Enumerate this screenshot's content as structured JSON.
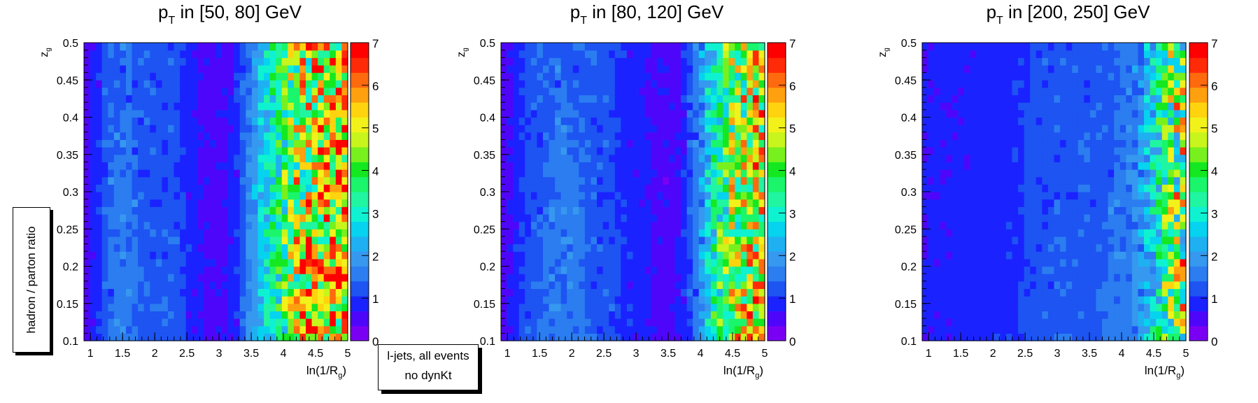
{
  "side_label": "hadron / parton ratio",
  "caption": {
    "line1": "l-jets, all events",
    "line2": "no dynKt"
  },
  "palette": [
    "#7a00f4",
    "#4e06fa",
    "#1a23ff",
    "#1d54f2",
    "#2b7df0",
    "#3698ef",
    "#1fb0f2",
    "#06d3ef",
    "#0ef2d2",
    "#20f5a1",
    "#1af56b",
    "#14e820",
    "#78f01e",
    "#c8f51c",
    "#f2f21a",
    "#ffd40e",
    "#ffa00e",
    "#ff6a0e",
    "#ff2a08",
    "#ff0000"
  ],
  "chart_data": [
    {
      "type": "heatmap",
      "title": "p_T in [50, 80] GeV",
      "title_main": "p",
      "title_sub": "T",
      "title_rest": " in [50, 80] GeV",
      "xlabel": "ln(1/R_g)",
      "xlabel_main": "ln(1/R",
      "xlabel_sub": "g",
      "xlabel_end": ")",
      "ylabel": "z_g",
      "ylabel_main": "z",
      "ylabel_sub": "g",
      "xlim": [
        0.9,
        5.0
      ],
      "ylim": [
        0.1,
        0.5
      ],
      "zlim": [
        0,
        7
      ],
      "x_ticks": [
        "1",
        "1.5",
        "2",
        "2.5",
        "3",
        "3.5",
        "4",
        "4.5",
        "5"
      ],
      "y_ticks": [
        "0.1",
        "0.15",
        "0.2",
        "0.25",
        "0.3",
        "0.35",
        "0.4",
        "0.45",
        "0.5"
      ],
      "z_ticks": [
        "0",
        "1",
        "2",
        "3",
        "4",
        "5",
        "6",
        "7"
      ],
      "zones": [
        {
          "x": 1.0,
          "z_lo": 0.5,
          "z_hi": 0.7
        },
        {
          "x": 1.3,
          "z_lo": 0.9,
          "z_hi": 1.8
        },
        {
          "x": 1.6,
          "z_lo": 1.0,
          "z_hi": 1.8
        },
        {
          "x": 2.0,
          "z_lo": 0.8,
          "z_hi": 1.6
        },
        {
          "x": 2.3,
          "z_lo": 1.0,
          "z_hi": 1.5
        },
        {
          "x": 2.6,
          "z_lo": 0.5,
          "z_hi": 1.0
        },
        {
          "x": 2.9,
          "z_lo": 0.3,
          "z_hi": 0.8
        },
        {
          "x": 3.2,
          "z_lo": 0.4,
          "z_hi": 1.0
        },
        {
          "x": 3.45,
          "z_lo": 1.0,
          "z_hi": 2.0
        },
        {
          "x": 3.65,
          "z_lo": 1.8,
          "z_hi": 3.0
        },
        {
          "x": 3.95,
          "z_lo": 2.2,
          "z_hi": 4.5
        },
        {
          "x": 4.2,
          "z_lo": 2.5,
          "z_hi": 6.5
        },
        {
          "x": 4.6,
          "z_lo": 2.8,
          "z_hi": 7.0
        },
        {
          "x": 5.0,
          "z_lo": 3.0,
          "z_hi": 7.0
        }
      ]
    },
    {
      "type": "heatmap",
      "title": "p_T in [80, 120] GeV",
      "title_main": "p",
      "title_sub": "T",
      "title_rest": " in [80, 120] GeV",
      "xlabel": "ln(1/R_g)",
      "xlabel_main": "ln(1/R",
      "xlabel_sub": "g",
      "xlabel_end": ")",
      "ylabel": "z_g",
      "ylabel_main": "z",
      "ylabel_sub": "g",
      "xlim": [
        0.9,
        5.0
      ],
      "ylim": [
        0.1,
        0.5
      ],
      "zlim": [
        0,
        7
      ],
      "x_ticks": [
        "1",
        "1.5",
        "2",
        "2.5",
        "3",
        "3.5",
        "4",
        "4.5",
        "5"
      ],
      "y_ticks": [
        "0.1",
        "0.15",
        "0.2",
        "0.25",
        "0.3",
        "0.35",
        "0.4",
        "0.45",
        "0.5"
      ],
      "z_ticks": [
        "0",
        "1",
        "2",
        "3",
        "4",
        "5",
        "6",
        "7"
      ],
      "zones": [
        {
          "x": 1.0,
          "z_lo": 0.5,
          "z_hi": 0.7
        },
        {
          "x": 1.4,
          "z_lo": 0.9,
          "z_hi": 1.7
        },
        {
          "x": 1.8,
          "z_lo": 1.0,
          "z_hi": 1.8
        },
        {
          "x": 2.2,
          "z_lo": 1.0,
          "z_hi": 1.7
        },
        {
          "x": 2.6,
          "z_lo": 0.8,
          "z_hi": 1.4
        },
        {
          "x": 3.0,
          "z_lo": 0.6,
          "z_hi": 1.0
        },
        {
          "x": 3.4,
          "z_lo": 0.3,
          "z_hi": 0.8
        },
        {
          "x": 3.7,
          "z_lo": 0.4,
          "z_hi": 1.0
        },
        {
          "x": 3.95,
          "z_lo": 1.0,
          "z_hi": 2.2
        },
        {
          "x": 4.2,
          "z_lo": 2.0,
          "z_hi": 4.0
        },
        {
          "x": 4.5,
          "z_lo": 2.5,
          "z_hi": 6.0
        },
        {
          "x": 5.0,
          "z_lo": 3.0,
          "z_hi": 7.0
        }
      ]
    },
    {
      "type": "heatmap",
      "title": "p_T in [200, 250] GeV",
      "title_main": "p",
      "title_sub": "T",
      "title_rest": " in [200, 250] GeV",
      "xlabel": "ln(1/R_g)",
      "xlabel_main": "ln(1/R",
      "xlabel_sub": "g",
      "xlabel_end": ")",
      "ylabel": "z_g",
      "ylabel_main": "z",
      "ylabel_sub": "g",
      "xlim": [
        0.9,
        5.0
      ],
      "ylim": [
        0.1,
        0.5
      ],
      "zlim": [
        0,
        7
      ],
      "x_ticks": [
        "1",
        "1.5",
        "2",
        "2.5",
        "3",
        "3.5",
        "4",
        "4.5",
        "5"
      ],
      "y_ticks": [
        "0.1",
        "0.15",
        "0.2",
        "0.25",
        "0.3",
        "0.35",
        "0.4",
        "0.45",
        "0.5"
      ],
      "z_ticks": [
        "0",
        "1",
        "2",
        "3",
        "4",
        "5",
        "6",
        "7"
      ],
      "zones": [
        {
          "x": 1.0,
          "z_lo": 0.6,
          "z_hi": 0.8
        },
        {
          "x": 2.0,
          "z_lo": 0.7,
          "z_hi": 1.0
        },
        {
          "x": 3.0,
          "z_lo": 0.9,
          "z_hi": 1.5
        },
        {
          "x": 3.6,
          "z_lo": 1.0,
          "z_hi": 1.6
        },
        {
          "x": 4.0,
          "z_lo": 1.0,
          "z_hi": 1.8
        },
        {
          "x": 4.3,
          "z_lo": 1.2,
          "z_hi": 2.5
        },
        {
          "x": 4.6,
          "z_lo": 1.8,
          "z_hi": 4.5
        },
        {
          "x": 4.8,
          "z_lo": 2.0,
          "z_hi": 6.0
        },
        {
          "x": 5.0,
          "z_lo": 2.0,
          "z_hi": 7.0
        }
      ]
    }
  ]
}
